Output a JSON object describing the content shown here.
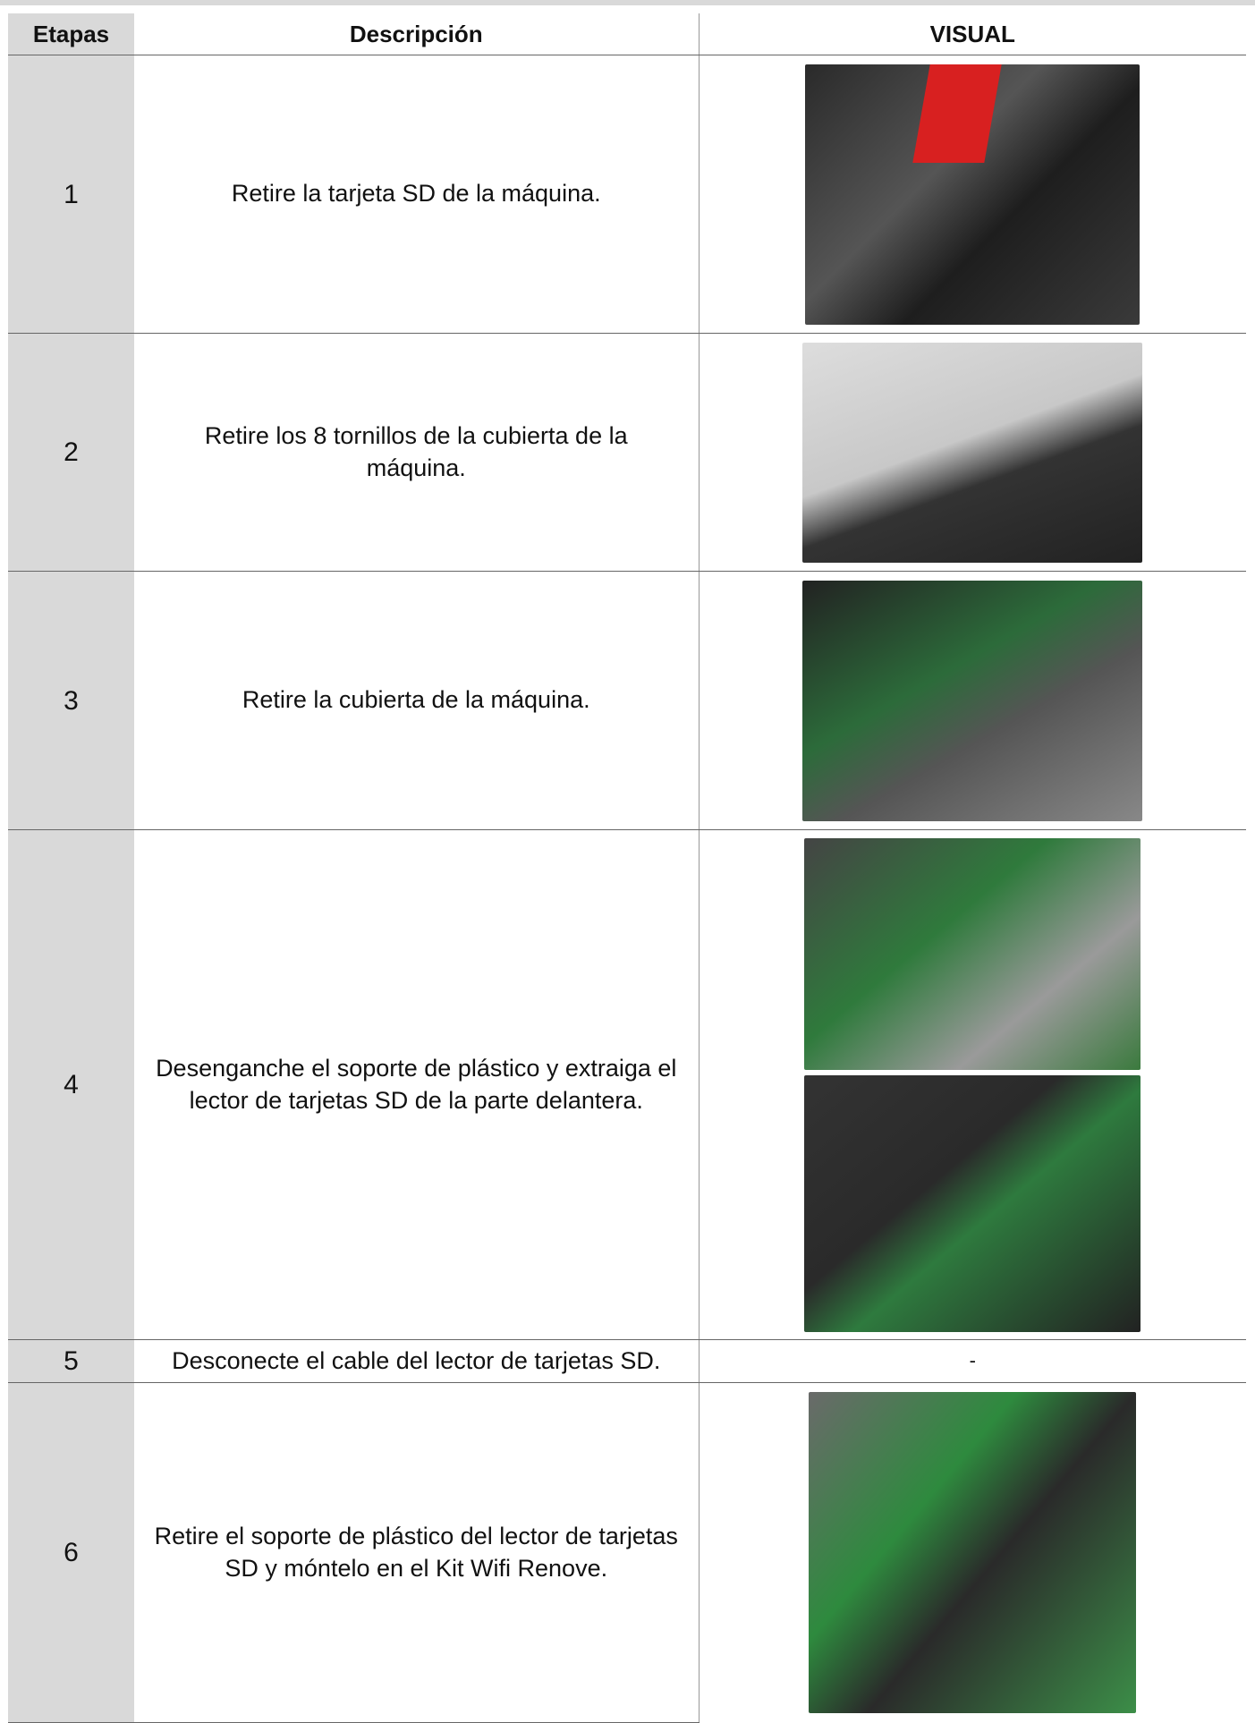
{
  "table": {
    "header": [
      "Etapas",
      "Descripción",
      "VISUAL"
    ],
    "rows": [
      [
        "1",
        "Retire la tarjeta SD de la máquina."
      ],
      [
        "2",
        "Retire los 8 tornillos de la cubierta de la máquina."
      ],
      [
        "3",
        "Retire la cubierta de la máquina."
      ],
      [
        "4",
        "Desenganche el soporte de plástico y extraiga el lector de tarjetas SD de la parte delantera."
      ],
      [
        "5",
        "Desconecte el cable del lector de tarjetas SD.",
        "-"
      ],
      [
        "6",
        "Retire el soporte de plástico del lector de tarjetas SD y móntelo en el Kit Wifi Renove."
      ]
    ]
  }
}
